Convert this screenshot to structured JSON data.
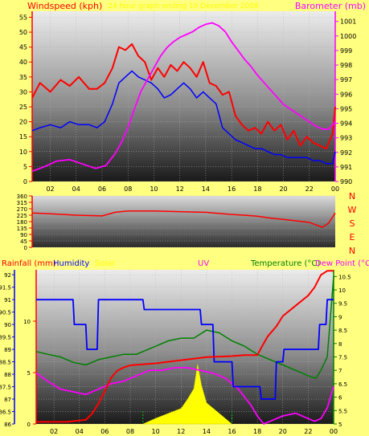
{
  "header": {
    "wind_label": "Windspeed (kph)",
    "date_label": "24 hour graph ending 10 December 2008",
    "baro_label": "Barometer (mb)",
    "rain_label": "Rainfall (mm)",
    "humidity_label": "Humidity",
    "solar_label": "Solar",
    "uv_label": "UV",
    "temp_label": "Temperature (°C)",
    "dew_label": "Dew Point (°C)"
  },
  "compass": [
    "N",
    "W",
    "S",
    "E",
    "N"
  ],
  "colors": {
    "background": "#ffff80",
    "wind_gust": "#ff0000",
    "wind_avg": "#0000ff",
    "barometer": "#ff00ff",
    "direction": "#ff0000",
    "rain": "#ff0000",
    "humidity": "#0000ff",
    "solar": "#ffff00",
    "uv": "#ff00ff",
    "temperature": "#008000",
    "dewpoint": "#ff00ff"
  },
  "chart_data": [
    {
      "type": "line",
      "title": "24 hour graph ending 10 December 2008",
      "x_ticks": [
        "02",
        "04",
        "06",
        "08",
        "10",
        "12",
        "14",
        "16",
        "18",
        "20",
        "22",
        "00"
      ],
      "y_left_label": "Windspeed (kph)",
      "y_left_ticks": [
        0,
        5,
        10,
        15,
        20,
        25,
        30,
        35,
        40,
        45,
        50,
        55
      ],
      "y_left_range": [
        0,
        57
      ],
      "y_right_label": "Barometer (mb)",
      "y_right_ticks": [
        990,
        991,
        992,
        993,
        994,
        995,
        996,
        997,
        998,
        999,
        1000,
        1001
      ],
      "y_right_range": [
        990,
        1001.7
      ],
      "x_range": [
        0.6,
        24
      ],
      "series": [
        {
          "name": "Windspeed (kph)",
          "axis": "left",
          "x": [
            0.6,
            1.2,
            2,
            2.8,
            3.5,
            4.2,
            5,
            5.6,
            6.2,
            6.8,
            7.3,
            7.8,
            8.3,
            8.8,
            9.3,
            9.8,
            10.3,
            10.8,
            11.3,
            11.8,
            12.3,
            12.8,
            13.3,
            13.8,
            14.3,
            14.8,
            15.3,
            15.8,
            16.3,
            16.8,
            17.3,
            17.8,
            18.3,
            18.8,
            19.3,
            19.8,
            20.3,
            20.8,
            21.3,
            21.8,
            22.3,
            22.8,
            23.3,
            23.8,
            24
          ],
          "values": [
            28,
            33,
            30,
            34,
            32,
            35,
            31,
            31,
            33,
            38,
            45,
            44,
            46,
            42,
            40,
            34,
            38,
            35,
            39,
            37,
            40,
            38,
            35,
            40,
            33,
            32,
            29,
            30,
            22,
            19,
            17,
            18,
            16,
            20,
            17,
            19,
            14,
            17,
            12,
            15,
            13,
            12,
            11,
            16,
            25
          ]
        },
        {
          "name": "Average windspeed",
          "axis": "left",
          "x": [
            0.6,
            1.2,
            2,
            2.8,
            3.5,
            4.2,
            5,
            5.6,
            6.2,
            6.8,
            7.3,
            7.8,
            8.3,
            8.8,
            9.3,
            9.8,
            10.3,
            10.8,
            11.3,
            11.8,
            12.3,
            12.8,
            13.3,
            13.8,
            14.3,
            14.8,
            15.3,
            15.8,
            16.3,
            16.8,
            17.3,
            17.8,
            18.3,
            18.8,
            19.3,
            19.8,
            20.3,
            20.8,
            21.3,
            21.8,
            22.3,
            22.8,
            23.3,
            23.8,
            24
          ],
          "values": [
            17,
            18,
            19,
            18,
            20,
            19,
            19,
            18,
            20,
            26,
            33,
            35,
            37,
            35,
            34,
            33,
            31,
            28,
            29,
            31,
            33,
            31,
            28,
            30,
            28,
            26,
            18,
            16,
            14,
            13,
            12,
            11,
            11,
            10,
            9,
            9,
            8,
            8,
            8,
            8,
            7,
            7,
            6,
            6,
            10
          ]
        },
        {
          "name": "Barometer (mb)",
          "axis": "right",
          "x": [
            0.6,
            1.5,
            2.5,
            3.5,
            4.5,
            5.5,
            6.3,
            7,
            7.5,
            8,
            8.5,
            9,
            9.5,
            10,
            10.5,
            11,
            11.5,
            12,
            12.5,
            13,
            13.5,
            14,
            14.5,
            15,
            15.5,
            16,
            16.5,
            17,
            17.5,
            18,
            18.5,
            19,
            19.5,
            20,
            20.5,
            21,
            21.5,
            22,
            22.5,
            23,
            23.5,
            24
          ],
          "values": [
            990.7,
            991.0,
            991.4,
            991.5,
            991.2,
            990.9,
            991.1,
            991.9,
            992.7,
            993.7,
            995.0,
            996.2,
            997.0,
            997.8,
            998.6,
            999.2,
            999.6,
            999.9,
            1000.1,
            1000.3,
            1000.6,
            1000.8,
            1000.9,
            1000.7,
            1000.3,
            999.6,
            999.0,
            998.4,
            997.9,
            997.3,
            996.8,
            996.3,
            995.8,
            995.3,
            995.0,
            994.7,
            994.4,
            994.1,
            993.8,
            993.6,
            993.6,
            994.1
          ]
        }
      ]
    },
    {
      "type": "line",
      "y_left_ticks": [
        0,
        45,
        90,
        135,
        180,
        225,
        270,
        315,
        360
      ],
      "y_range": [
        0,
        360
      ],
      "x_range": [
        0.6,
        24
      ],
      "series": [
        {
          "name": "Wind direction",
          "x": [
            0.6,
            2,
            4,
            6,
            7,
            8,
            10,
            12,
            14,
            15,
            16,
            17,
            18,
            19,
            20,
            21,
            22,
            23,
            23.5,
            24
          ],
          "values": [
            240,
            235,
            225,
            220,
            245,
            255,
            255,
            250,
            245,
            238,
            230,
            225,
            218,
            205,
            195,
            185,
            175,
            140,
            170,
            240
          ]
        }
      ]
    },
    {
      "type": "line",
      "x_ticks": [
        "02",
        "04",
        "06",
        "08",
        "10",
        "12",
        "14",
        "16",
        "18",
        "20",
        "22",
        "00"
      ],
      "x_range": [
        0.6,
        24
      ],
      "rain_ticks": [
        0,
        5,
        10
      ],
      "rain_range": [
        0,
        15
      ],
      "humidity_ticks": [
        86,
        86.5,
        87,
        87.5,
        88,
        88.5,
        89,
        89.5,
        90,
        90.5,
        91,
        91.5,
        92
      ],
      "humidity_range": [
        86,
        92.2
      ],
      "temp_ticks": [
        5,
        5.5,
        6,
        6.5,
        7,
        7.5,
        8,
        8.5,
        9,
        9.5,
        10,
        10.5
      ],
      "temp_range": [
        5,
        10.75
      ],
      "series": [
        {
          "name": "Rainfall (mm)",
          "axis": "rain",
          "x": [
            0.6,
            3,
            4.5,
            5,
            5.5,
            6,
            6.5,
            7,
            7.5,
            8,
            9,
            10,
            12,
            14,
            16,
            17,
            18,
            18.3,
            18.8,
            19.5,
            20,
            21,
            22,
            22.5,
            23,
            23.5,
            24
          ],
          "values": [
            0.2,
            0.2,
            0.4,
            1.0,
            2.0,
            3.2,
            4.5,
            5.2,
            5.5,
            5.7,
            5.8,
            5.9,
            6.2,
            6.5,
            6.6,
            6.7,
            6.7,
            7.4,
            8.5,
            9.5,
            10.5,
            11.5,
            12.5,
            13.3,
            14.5,
            14.9,
            14.9
          ]
        },
        {
          "name": "Humidity",
          "axis": "humidity",
          "x": [
            0.6,
            3.5,
            3.6,
            4.5,
            4.6,
            5.4,
            5.5,
            9,
            9.1,
            11.7,
            11.8,
            12.5,
            12.6,
            13.5,
            13.6,
            14.5,
            14.6,
            16,
            16.1,
            18.2,
            18.3,
            19.4,
            19.5,
            20,
            20.1,
            22.8,
            22.9,
            23.4,
            23.5,
            24
          ],
          "values": [
            91,
            91,
            90,
            90,
            89,
            89,
            91,
            91,
            90.6,
            90.6,
            90.6,
            90.6,
            90.6,
            90.6,
            90,
            90,
            88.5,
            88.5,
            87.5,
            87.5,
            87,
            87,
            88.5,
            88.5,
            89,
            89,
            90,
            90,
            91,
            91
          ]
        },
        {
          "name": "Solar",
          "axis": "solar",
          "x": [
            9,
            10,
            11,
            12,
            12.5,
            13,
            13.3,
            13.6,
            14,
            15,
            16
          ],
          "values": [
            0.0,
            0.08,
            0.15,
            0.22,
            0.35,
            0.5,
            0.85,
            0.55,
            0.3,
            0.15,
            0.0
          ]
        },
        {
          "name": "Temperature (°C)",
          "axis": "temp",
          "x": [
            0.6,
            1.5,
            2.5,
            3.5,
            4.5,
            5.5,
            6.5,
            7.5,
            8.5,
            9,
            10,
            11,
            12,
            13,
            14,
            15,
            16,
            17,
            18,
            19,
            20,
            21,
            22,
            22.6,
            23,
            23.5,
            24
          ],
          "values": [
            7.7,
            7.6,
            7.5,
            7.3,
            7.2,
            7.4,
            7.5,
            7.6,
            7.6,
            7.7,
            7.9,
            8.1,
            8.2,
            8.2,
            8.5,
            8.4,
            8.1,
            7.9,
            7.6,
            7.4,
            7.2,
            7.0,
            6.8,
            6.7,
            7.0,
            7.5,
            10.5
          ]
        },
        {
          "name": "Dew Point (°C)",
          "axis": "temp",
          "x": [
            0.6,
            1.5,
            2.5,
            3.5,
            4.5,
            5.5,
            6.5,
            7.5,
            8.5,
            9.5,
            10.5,
            11.5,
            12.5,
            13.5,
            14.5,
            15.5,
            16.5,
            17.5,
            18,
            18.5,
            19,
            20,
            21,
            22,
            22.5,
            23,
            23.5,
            24
          ],
          "values": [
            6.9,
            6.6,
            6.3,
            6.2,
            6.1,
            6.3,
            6.5,
            6.6,
            6.8,
            7.0,
            7.0,
            7.1,
            7.1,
            7.0,
            6.9,
            6.7,
            6.3,
            5.7,
            5.3,
            5.0,
            5.1,
            5.3,
            5.4,
            5.2,
            5.1,
            5.2,
            5.6,
            6.4
          ]
        }
      ]
    }
  ]
}
